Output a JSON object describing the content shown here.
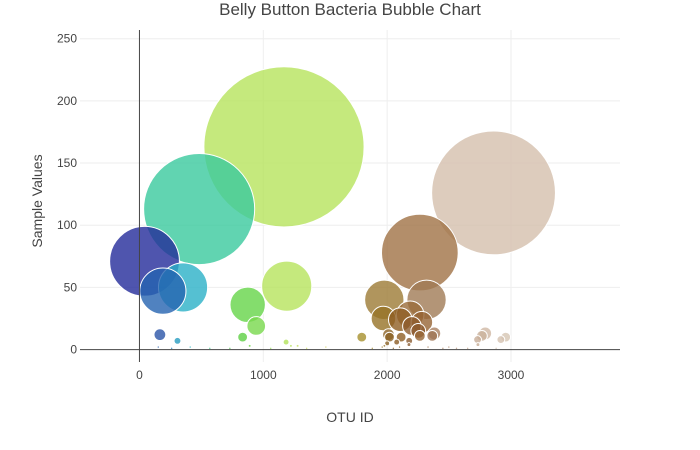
{
  "chart_data": {
    "type": "scatter",
    "subtype": "bubble",
    "title": "Belly Button Bacteria Bubble Chart",
    "xlabel": "OTU ID",
    "ylabel": "Sample Values",
    "xlim": [
      -480,
      3880
    ],
    "ylim": [
      -10,
      257
    ],
    "xticks": [
      0,
      1000,
      2000,
      3000
    ],
    "yticks": [
      0,
      50,
      100,
      150,
      200,
      250
    ],
    "grid": true,
    "legend": "none",
    "colorscale": "Earth",
    "points": [
      {
        "x": 1167,
        "y": 163,
        "color": "#b6e35d"
      },
      {
        "x": 2859,
        "y": 126,
        "color": "#d4bfad"
      },
      {
        "x": 482,
        "y": 113,
        "color": "#39c99d"
      },
      {
        "x": 2264,
        "y": 78,
        "color": "#a07245"
      },
      {
        "x": 41,
        "y": 71,
        "color": "#232b9a"
      },
      {
        "x": 1189,
        "y": 51,
        "color": "#b6e35d"
      },
      {
        "x": 352,
        "y": 50,
        "color": "#2bb0c7"
      },
      {
        "x": 189,
        "y": 47,
        "color": "#2463b0"
      },
      {
        "x": 2318,
        "y": 40,
        "color": "#a07a55"
      },
      {
        "x": 1977,
        "y": 40,
        "color": "#9c7a35"
      },
      {
        "x": 874,
        "y": 36,
        "color": "#65d548"
      },
      {
        "x": 2186,
        "y": 28,
        "color": "#9a6c3a"
      },
      {
        "x": 1970,
        "y": 25,
        "color": "#967226"
      },
      {
        "x": 2106,
        "y": 24,
        "color": "#8e5e23"
      },
      {
        "x": 2280,
        "y": 22,
        "color": "#966434"
      },
      {
        "x": 2200,
        "y": 19,
        "color": "#8e5e30"
      },
      {
        "x": 943,
        "y": 19,
        "color": "#78d84c"
      },
      {
        "x": 2251,
        "y": 15,
        "color": "#8c5a2e"
      },
      {
        "x": 2381,
        "y": 13,
        "color": "#a98060"
      },
      {
        "x": 2792,
        "y": 13,
        "color": "#cfb8a4"
      },
      {
        "x": 165,
        "y": 12,
        "color": "#2b55a7"
      },
      {
        "x": 2011,
        "y": 12,
        "color": "#8c6325"
      },
      {
        "x": 2765,
        "y": 11,
        "color": "#cab39e"
      },
      {
        "x": 2364,
        "y": 11,
        "color": "#9f7454"
      },
      {
        "x": 2264,
        "y": 11,
        "color": "#966534"
      },
      {
        "x": 2019,
        "y": 10,
        "color": "#8c6325"
      },
      {
        "x": 2113,
        "y": 10,
        "color": "#8e5e23"
      },
      {
        "x": 2957,
        "y": 10,
        "color": "#d6c5b3"
      },
      {
        "x": 1795,
        "y": 10,
        "color": "#a6902d"
      },
      {
        "x": 833,
        "y": 10,
        "color": "#5ecf43"
      },
      {
        "x": 2730,
        "y": 8,
        "color": "#c8ae98"
      },
      {
        "x": 2918,
        "y": 8,
        "color": "#d4c2b0"
      },
      {
        "x": 307,
        "y": 7,
        "color": "#279cc1"
      },
      {
        "x": 2178,
        "y": 7,
        "color": "#8c5e33"
      },
      {
        "x": 2077,
        "y": 6,
        "color": "#8b5d26"
      },
      {
        "x": 1184,
        "y": 6,
        "color": "#b2e25a"
      },
      {
        "x": 2000,
        "y": 5,
        "color": "#8a6126"
      },
      {
        "x": 2733,
        "y": 4,
        "color": "#c6ab95"
      },
      {
        "x": 2176,
        "y": 4,
        "color": "#8c5e33"
      },
      {
        "x": 1277,
        "y": 3,
        "color": "#c5de60"
      },
      {
        "x": 1977,
        "y": 3,
        "color": "#9c7a35"
      },
      {
        "x": 890,
        "y": 3,
        "color": "#6bd649"
      },
      {
        "x": 1223,
        "y": 3,
        "color": "#b8e25c"
      },
      {
        "x": 2330,
        "y": 2,
        "color": "#a27a57"
      },
      {
        "x": 152,
        "y": 2,
        "color": "#2a60ad"
      },
      {
        "x": 2498,
        "y": 2,
        "color": "#b08c70"
      },
      {
        "x": 1505,
        "y": 2,
        "color": "#d5d360"
      },
      {
        "x": 410,
        "y": 2,
        "color": "#2fbbc4"
      },
      {
        "x": 2100,
        "y": 2,
        "color": "#8e5e23"
      },
      {
        "x": 1960,
        "y": 2,
        "color": "#957224"
      },
      {
        "x": 730,
        "y": 1,
        "color": "#4ec84a"
      },
      {
        "x": 568,
        "y": 1,
        "color": "#3dcb8a"
      },
      {
        "x": 2450,
        "y": 1,
        "color": "#ab8466"
      },
      {
        "x": 2560,
        "y": 1,
        "color": "#b89680"
      },
      {
        "x": 1350,
        "y": 1,
        "color": "#cadf62"
      },
      {
        "x": 1880,
        "y": 1,
        "color": "#a18a30"
      },
      {
        "x": 2650,
        "y": 1,
        "color": "#c2a48c"
      },
      {
        "x": 2050,
        "y": 1,
        "color": "#8c6125"
      },
      {
        "x": 260,
        "y": 1,
        "color": "#2882bb"
      },
      {
        "x": 1060,
        "y": 1,
        "color": "#95de55"
      },
      {
        "x": 2880,
        "y": 1,
        "color": "#d1bdaa"
      }
    ]
  }
}
